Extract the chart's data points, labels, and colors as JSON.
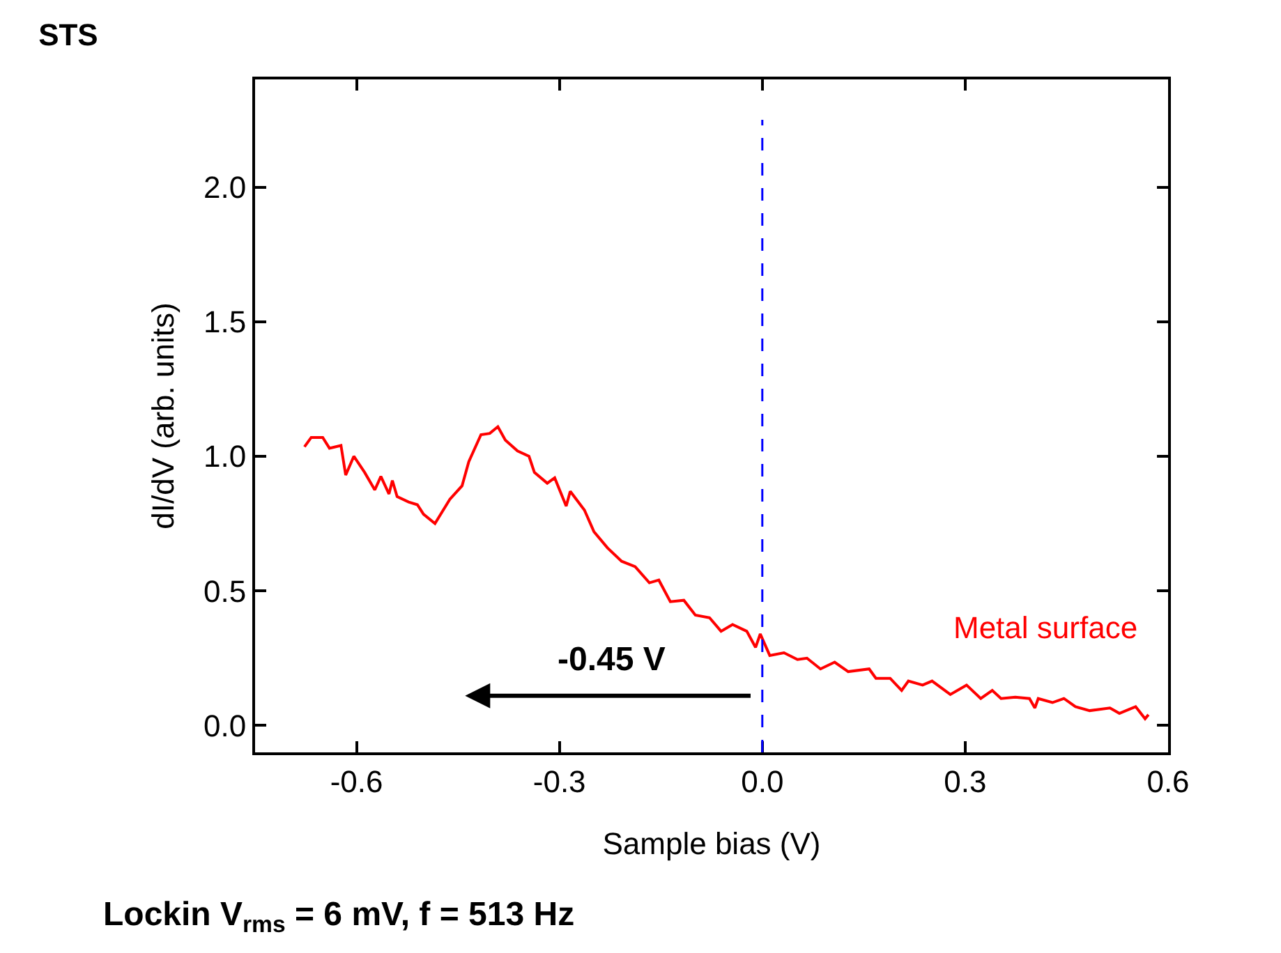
{
  "chart_data": {
    "type": "line",
    "title": "STS",
    "xlabel": "Sample bias (V)",
    "ylabel": "dI/dV (arb. units)",
    "x": [
      -0.677,
      -0.667,
      -0.65,
      -0.64,
      -0.623,
      -0.616,
      -0.604,
      -0.588,
      -0.573,
      -0.564,
      -0.552,
      -0.547,
      -0.54,
      -0.523,
      -0.51,
      -0.501,
      -0.484,
      -0.462,
      -0.444,
      -0.434,
      -0.416,
      -0.403,
      -0.391,
      -0.38,
      -0.362,
      -0.345,
      -0.337,
      -0.318,
      -0.307,
      -0.29,
      -0.284,
      -0.263,
      -0.249,
      -0.229,
      -0.208,
      -0.188,
      -0.167,
      -0.153,
      -0.136,
      -0.116,
      -0.099,
      -0.078,
      -0.061,
      -0.044,
      -0.023,
      -0.01,
      -0.003,
      0.011,
      0.032,
      0.052,
      0.066,
      0.086,
      0.107,
      0.127,
      0.158,
      0.168,
      0.189,
      0.206,
      0.216,
      0.237,
      0.251,
      0.278,
      0.302,
      0.323,
      0.34,
      0.353,
      0.374,
      0.395,
      0.403,
      0.408,
      0.429,
      0.446,
      0.463,
      0.484,
      0.514,
      0.528,
      0.552,
      0.566,
      0.571
    ],
    "series": [
      {
        "name": "Metal surface",
        "color": "#ff0000",
        "values": [
          1.035,
          1.07,
          1.07,
          1.03,
          1.04,
          0.93,
          1.0,
          0.94,
          0.875,
          0.925,
          0.86,
          0.91,
          0.85,
          0.83,
          0.82,
          0.785,
          0.75,
          0.84,
          0.89,
          0.98,
          1.08,
          1.085,
          1.11,
          1.06,
          1.02,
          1.0,
          0.94,
          0.9,
          0.92,
          0.815,
          0.87,
          0.8,
          0.72,
          0.66,
          0.61,
          0.59,
          0.53,
          0.54,
          0.46,
          0.465,
          0.41,
          0.4,
          0.35,
          0.375,
          0.35,
          0.29,
          0.34,
          0.26,
          0.27,
          0.245,
          0.25,
          0.21,
          0.235,
          0.2,
          0.21,
          0.175,
          0.175,
          0.13,
          0.165,
          0.15,
          0.165,
          0.115,
          0.15,
          0.1,
          0.13,
          0.1,
          0.105,
          0.1,
          0.065,
          0.1,
          0.085,
          0.1,
          0.07,
          0.055,
          0.065,
          0.045,
          0.07,
          0.025,
          0.04
        ]
      }
    ],
    "xlim": [
      -0.75,
      0.6
    ],
    "ylim": [
      -0.1,
      2.4
    ],
    "xticks": [
      -0.6,
      -0.3,
      {
        "value": 0,
        "label": "0.0"
      },
      0.3,
      0.6
    ],
    "yticks": [
      {
        "value": 0,
        "label": "0.0"
      },
      0.5,
      {
        "value": 1,
        "label": "1.0"
      },
      1.5,
      {
        "value": 2,
        "label": "2.0"
      }
    ],
    "ref_lines": [
      {
        "axis": "x",
        "value": 0.0,
        "color": "#0000ff",
        "line_style": "dashed"
      }
    ],
    "annotations": [
      "-0.45 V",
      "Lockin V$_{rms}$ = 6 mV, f = 513 Hz"
    ],
    "grid": false,
    "legend": false,
    "marker": "none",
    "line_style": "solid"
  }
}
